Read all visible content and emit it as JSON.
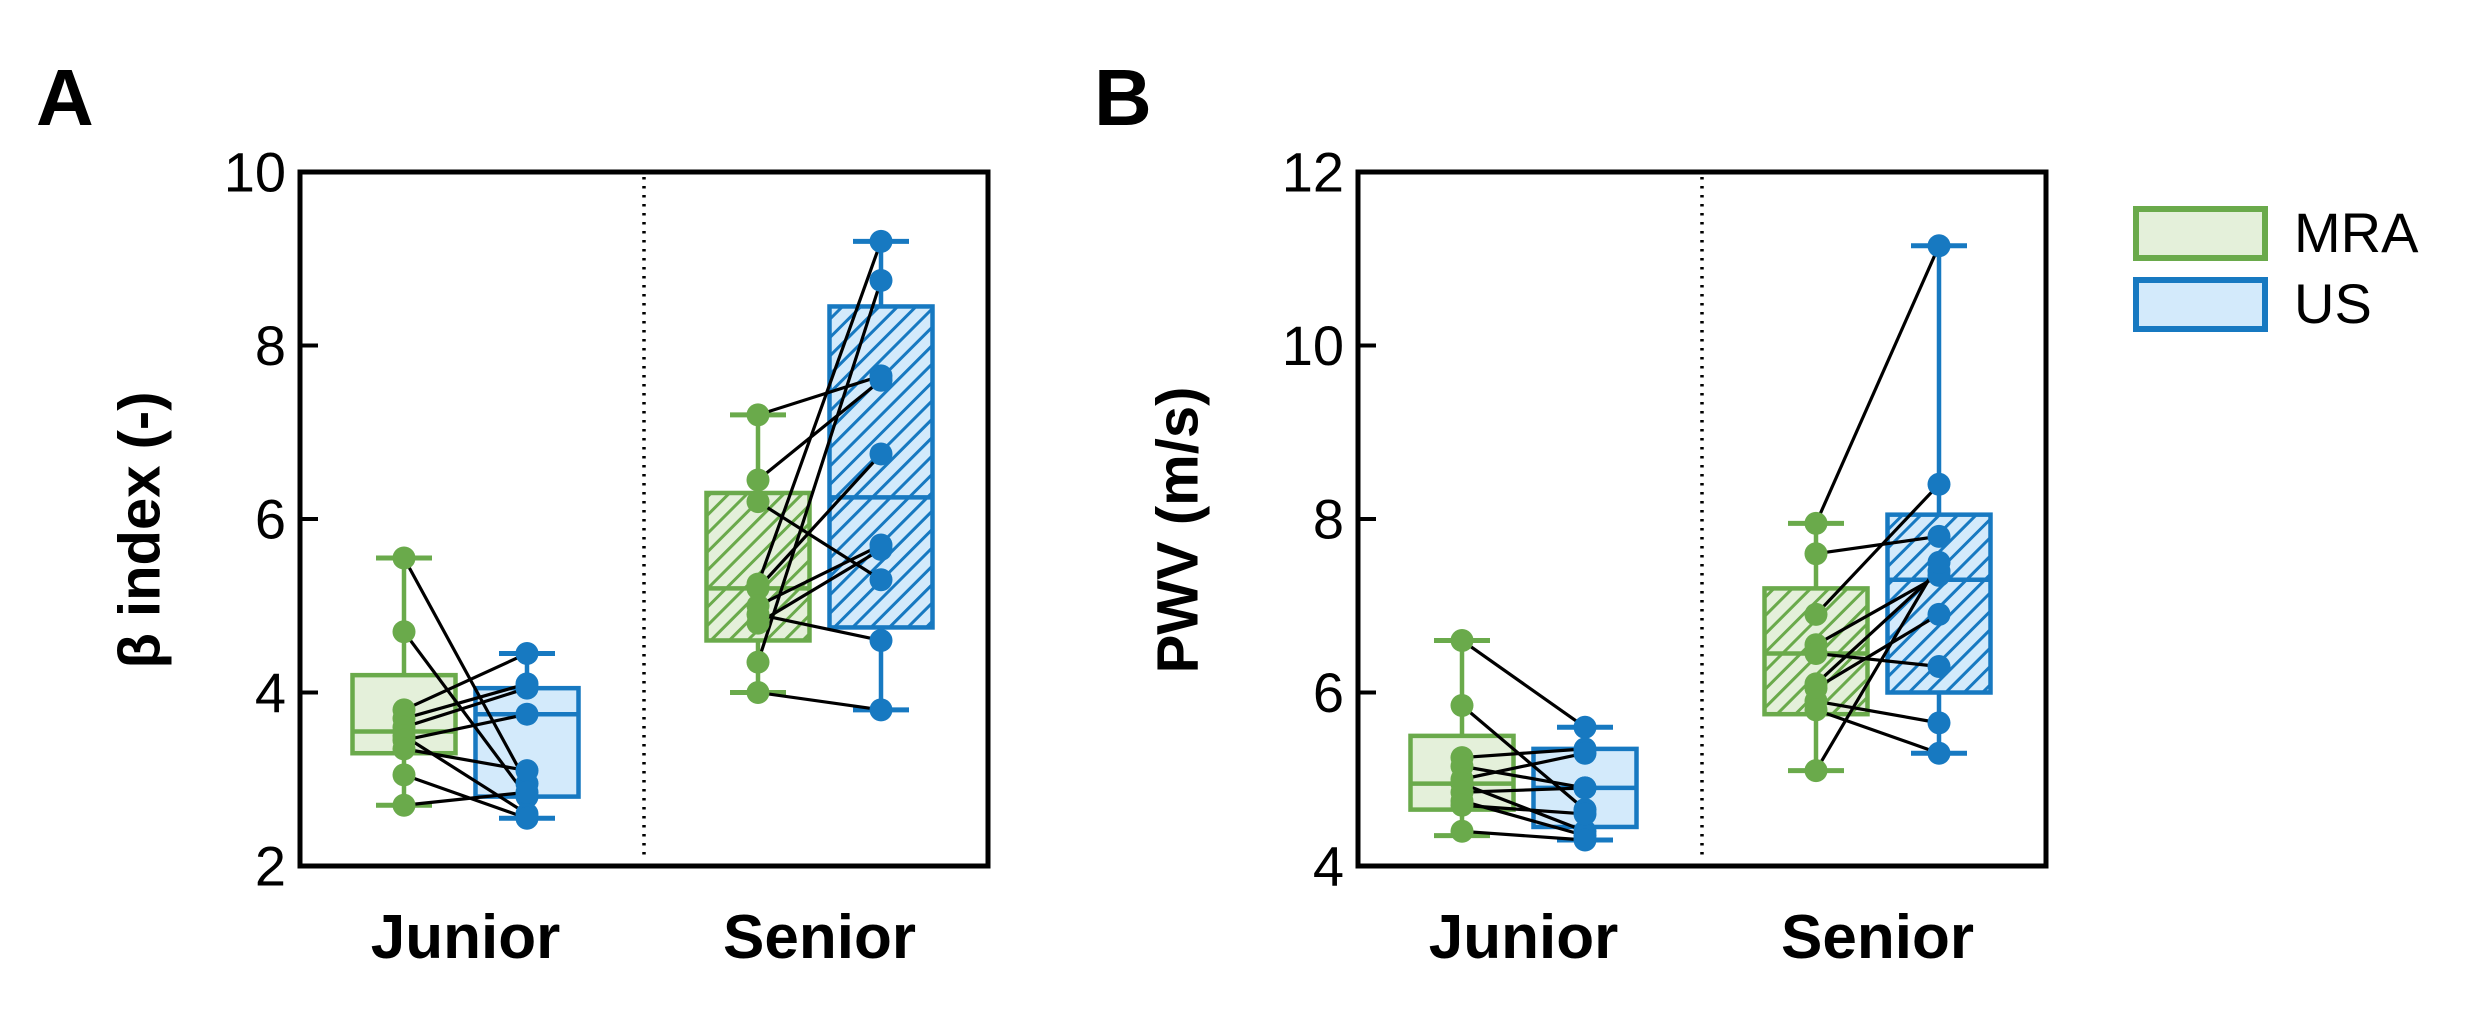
{
  "colors": {
    "mra_stroke": "#6aaa4b",
    "mra_fill": "#e4f0da",
    "us_stroke": "#1779c1",
    "us_fill": "#d3eafb",
    "pair_line": "#000000",
    "axis": "#000000",
    "divider": "#000000"
  },
  "legend": {
    "items": [
      {
        "label": "MRA",
        "series": "mra"
      },
      {
        "label": "US",
        "series": "us"
      }
    ]
  },
  "chart_data": [
    {
      "type": "boxplot",
      "panel_label": "A",
      "ylabel": "β index (-)",
      "ylim": [
        2,
        10
      ],
      "yticks": [
        2,
        4,
        6,
        8,
        10
      ],
      "categories": [
        "Junior",
        "Senior"
      ],
      "series_names": [
        "MRA",
        "US"
      ],
      "groups": [
        {
          "category": "Junior",
          "hatched": false,
          "mra_box": {
            "min": 2.7,
            "q1": 3.3,
            "median": 3.55,
            "q3": 4.2,
            "max": 5.55
          },
          "us_box": {
            "min": 2.55,
            "q1": 2.8,
            "median": 3.75,
            "q3": 4.05,
            "max": 4.45
          },
          "pairs_mra_us": [
            [
              5.55,
              2.95
            ],
            [
              4.7,
              2.8
            ],
            [
              3.8,
              4.45
            ],
            [
              3.7,
              4.1
            ],
            [
              3.6,
              4.05
            ],
            [
              3.5,
              2.6
            ],
            [
              3.45,
              3.75
            ],
            [
              3.35,
              3.1
            ],
            [
              3.05,
              2.55
            ],
            [
              2.7,
              2.85
            ]
          ]
        },
        {
          "category": "Senior",
          "hatched": true,
          "mra_box": {
            "min": 4.0,
            "q1": 4.6,
            "median": 5.2,
            "q3": 6.3,
            "max": 7.2
          },
          "us_box": {
            "min": 3.8,
            "q1": 4.75,
            "median": 6.25,
            "q3": 8.45,
            "max": 9.2
          },
          "pairs_mra_us": [
            [
              7.2,
              7.65
            ],
            [
              6.45,
              7.6
            ],
            [
              6.2,
              5.3
            ],
            [
              5.25,
              9.2
            ],
            [
              5.2,
              6.75
            ],
            [
              5.0,
              5.7
            ],
            [
              4.9,
              4.6
            ],
            [
              4.8,
              5.65
            ],
            [
              4.35,
              8.75
            ],
            [
              4.0,
              3.8
            ]
          ]
        }
      ]
    },
    {
      "type": "boxplot",
      "panel_label": "B",
      "ylabel": "PWV (m/s)",
      "ylim": [
        4,
        12
      ],
      "yticks": [
        4,
        6,
        8,
        10,
        12
      ],
      "categories": [
        "Junior",
        "Senior"
      ],
      "series_names": [
        "MRA",
        "US"
      ],
      "groups": [
        {
          "category": "Junior",
          "hatched": false,
          "mra_box": {
            "min": 4.35,
            "q1": 4.65,
            "median": 4.95,
            "q3": 5.5,
            "max": 6.6
          },
          "us_box": {
            "min": 4.3,
            "q1": 4.45,
            "median": 4.9,
            "q3": 5.35,
            "max": 5.6
          },
          "pairs_mra_us": [
            [
              6.6,
              5.6
            ],
            [
              5.85,
              4.65
            ],
            [
              5.25,
              5.35
            ],
            [
              5.15,
              4.9
            ],
            [
              5.0,
              5.3
            ],
            [
              4.95,
              4.4
            ],
            [
              4.85,
              4.9
            ],
            [
              4.75,
              4.35
            ],
            [
              4.7,
              4.6
            ],
            [
              4.4,
              4.3
            ]
          ]
        },
        {
          "category": "Senior",
          "hatched": true,
          "mra_box": {
            "min": 5.1,
            "q1": 5.75,
            "median": 6.45,
            "q3": 7.2,
            "max": 7.95
          },
          "us_box": {
            "min": 5.3,
            "q1": 6.0,
            "median": 7.3,
            "q3": 8.05,
            "max": 11.15
          },
          "pairs_mra_us": [
            [
              7.95,
              11.15
            ],
            [
              7.6,
              7.8
            ],
            [
              6.9,
              8.4
            ],
            [
              6.55,
              7.35
            ],
            [
              6.45,
              6.3
            ],
            [
              6.1,
              7.4
            ],
            [
              6.05,
              6.9
            ],
            [
              5.9,
              5.65
            ],
            [
              5.8,
              5.3
            ],
            [
              5.1,
              7.5
            ]
          ]
        }
      ]
    }
  ]
}
